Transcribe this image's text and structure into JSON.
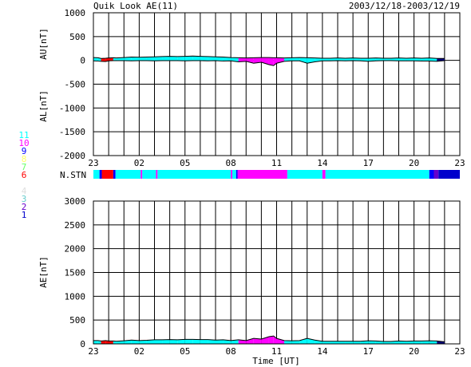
{
  "chart_data": {
    "type": "area",
    "title": "Quik Look AE(11)",
    "date_range": "2003/12/18-2003/12/19",
    "x_tick_labels": [
      "23",
      "02",
      "05",
      "08",
      "11",
      "14",
      "17",
      "20",
      "23"
    ],
    "x_tick_hours": [
      0,
      3,
      6,
      9,
      12,
      15,
      18,
      21,
      24
    ],
    "x_unit_note": "hours from 2003/12/18 23 UT",
    "xlim": [
      0,
      24
    ],
    "xlabel": "Time [UT]",
    "panels": [
      {
        "id": "au_al",
        "ylabels": [
          "AU[nT]",
          "AL[nT]"
        ],
        "ylim": [
          -2000,
          1000
        ],
        "yticks": [
          1000,
          500,
          0,
          -500,
          -1000,
          -1500,
          -2000
        ],
        "grid": true,
        "series": [
          {
            "name": "AU",
            "x": [
              0,
              0.3,
              0.5,
              0.8,
              1.0,
              1.3,
              1.5,
              2,
              2.5,
              3,
              3.5,
              4,
              4.5,
              5,
              5.5,
              6,
              6.5,
              7,
              7.5,
              8,
              8.5,
              9,
              9.5,
              10,
              10.5,
              11,
              11.5,
              11.8,
              12,
              12.5,
              13,
              13.5,
              14,
              14.5,
              15,
              15.5,
              16,
              16.5,
              17,
              17.5,
              18,
              18.5,
              19,
              19.5,
              20,
              20.5,
              21,
              21.5,
              22,
              22.5,
              23
            ],
            "y": [
              60,
              55,
              40,
              45,
              50,
              55,
              50,
              60,
              70,
              65,
              70,
              75,
              80,
              85,
              80,
              85,
              90,
              85,
              80,
              75,
              70,
              60,
              55,
              50,
              55,
              60,
              60,
              55,
              55,
              50,
              55,
              60,
              55,
              50,
              45,
              45,
              50,
              45,
              50,
              45,
              45,
              50,
              45,
              45,
              50,
              45,
              50,
              45,
              50,
              40,
              40
            ]
          },
          {
            "name": "AL",
            "x": [
              0,
              0.3,
              0.5,
              0.8,
              1.0,
              1.3,
              1.5,
              2,
              2.5,
              3,
              3.5,
              4,
              4.5,
              5,
              5.5,
              6,
              6.5,
              7,
              7.5,
              8,
              8.5,
              9,
              9.5,
              10,
              10.5,
              11,
              11.5,
              11.8,
              12,
              12.5,
              13,
              13.5,
              14,
              14.5,
              15,
              15.5,
              16,
              16.5,
              17,
              17.5,
              18,
              18.5,
              19,
              19.5,
              20,
              20.5,
              21,
              21.5,
              22,
              22.5,
              23
            ],
            "y": [
              -10,
              -15,
              -20,
              -25,
              -10,
              -5,
              -5,
              -5,
              -10,
              -5,
              -5,
              -10,
              -5,
              -5,
              -5,
              -10,
              -5,
              -5,
              -10,
              -5,
              -15,
              -10,
              -30,
              -20,
              -60,
              -40,
              -90,
              -110,
              -60,
              -20,
              -10,
              -10,
              -60,
              -30,
              -10,
              -10,
              -5,
              -10,
              -5,
              -10,
              -20,
              -10,
              -5,
              -5,
              -10,
              -10,
              -10,
              -15,
              -15,
              -20,
              -5
            ]
          }
        ]
      },
      {
        "id": "ae",
        "ylabels": [
          "AE[nT]"
        ],
        "ylim": [
          0,
          3000
        ],
        "yticks": [
          3000,
          2500,
          2000,
          1500,
          1000,
          500,
          0
        ],
        "grid": true,
        "series": [
          {
            "name": "AE",
            "x": [
              0,
              0.3,
              0.5,
              0.8,
              1.0,
              1.3,
              1.5,
              2,
              2.5,
              3,
              3.5,
              4,
              4.5,
              5,
              5.5,
              6,
              6.5,
              7,
              7.5,
              8,
              8.5,
              9,
              9.5,
              10,
              10.5,
              11,
              11.5,
              11.8,
              12,
              12.5,
              13,
              13.5,
              14,
              14.5,
              15,
              15.5,
              16,
              16.5,
              17,
              17.5,
              18,
              18.5,
              19,
              19.5,
              20,
              20.5,
              21,
              21.5,
              22,
              22.5,
              23
            ],
            "y": [
              70,
              70,
              60,
              70,
              60,
              60,
              55,
              65,
              80,
              70,
              75,
              85,
              85,
              90,
              85,
              95,
              95,
              90,
              90,
              80,
              85,
              70,
              85,
              70,
              115,
              100,
              150,
              165,
              115,
              70,
              65,
              70,
              115,
              80,
              55,
              55,
              55,
              55,
              55,
              55,
              65,
              60,
              50,
              50,
              60,
              55,
              60,
              60,
              65,
              60,
              45
            ]
          }
        ]
      }
    ],
    "station_count": {
      "label": "N.STN",
      "levels": [
        "11",
        "10",
        "9",
        "8",
        "7",
        "6",
        "5",
        "4",
        "3",
        "2",
        "1"
      ],
      "level_colors": [
        "#00ffff",
        "#ff00ff",
        "#0000ff",
        "#ffff66",
        "#66ff66",
        "#ff0000",
        "#ffffff",
        "#dddddd",
        "#66cccc",
        "#6600cc",
        "#0000cc"
      ],
      "segments": [
        {
          "start": 0.0,
          "end": 0.4,
          "count": 11
        },
        {
          "start": 0.4,
          "end": 0.55,
          "count": 9
        },
        {
          "start": 0.55,
          "end": 1.3,
          "count": 6
        },
        {
          "start": 1.3,
          "end": 1.45,
          "count": 9
        },
        {
          "start": 1.45,
          "end": 3.1,
          "count": 11
        },
        {
          "start": 3.1,
          "end": 3.2,
          "count": 10
        },
        {
          "start": 3.2,
          "end": 4.1,
          "count": 11
        },
        {
          "start": 4.1,
          "end": 4.2,
          "count": 10
        },
        {
          "start": 4.2,
          "end": 9.0,
          "count": 11
        },
        {
          "start": 9.0,
          "end": 9.1,
          "count": 10
        },
        {
          "start": 9.1,
          "end": 9.35,
          "count": 11
        },
        {
          "start": 9.35,
          "end": 9.45,
          "count": 9
        },
        {
          "start": 9.45,
          "end": 12.7,
          "count": 10
        },
        {
          "start": 12.7,
          "end": 15.0,
          "count": 11
        },
        {
          "start": 15.0,
          "end": 15.2,
          "count": 10
        },
        {
          "start": 15.2,
          "end": 22.0,
          "count": 11
        },
        {
          "start": 22.0,
          "end": 22.3,
          "count": 9
        },
        {
          "start": 22.3,
          "end": 22.6,
          "count": 2
        },
        {
          "start": 22.6,
          "end": 24.0,
          "count": 1
        }
      ]
    },
    "fill_colors": {
      "main": "#00ffff",
      "flag_red": "#ff0000",
      "flag_magenta": "#ff00ff",
      "flag_navy": "#000080",
      "line": "#000000"
    },
    "colored_intervals": [
      {
        "start": 0.55,
        "end": 1.3,
        "color": "flag_red"
      },
      {
        "start": 9.45,
        "end": 12.7,
        "color": "flag_magenta"
      },
      {
        "start": 22.3,
        "end": 24.0,
        "color": "flag_navy"
      }
    ]
  }
}
